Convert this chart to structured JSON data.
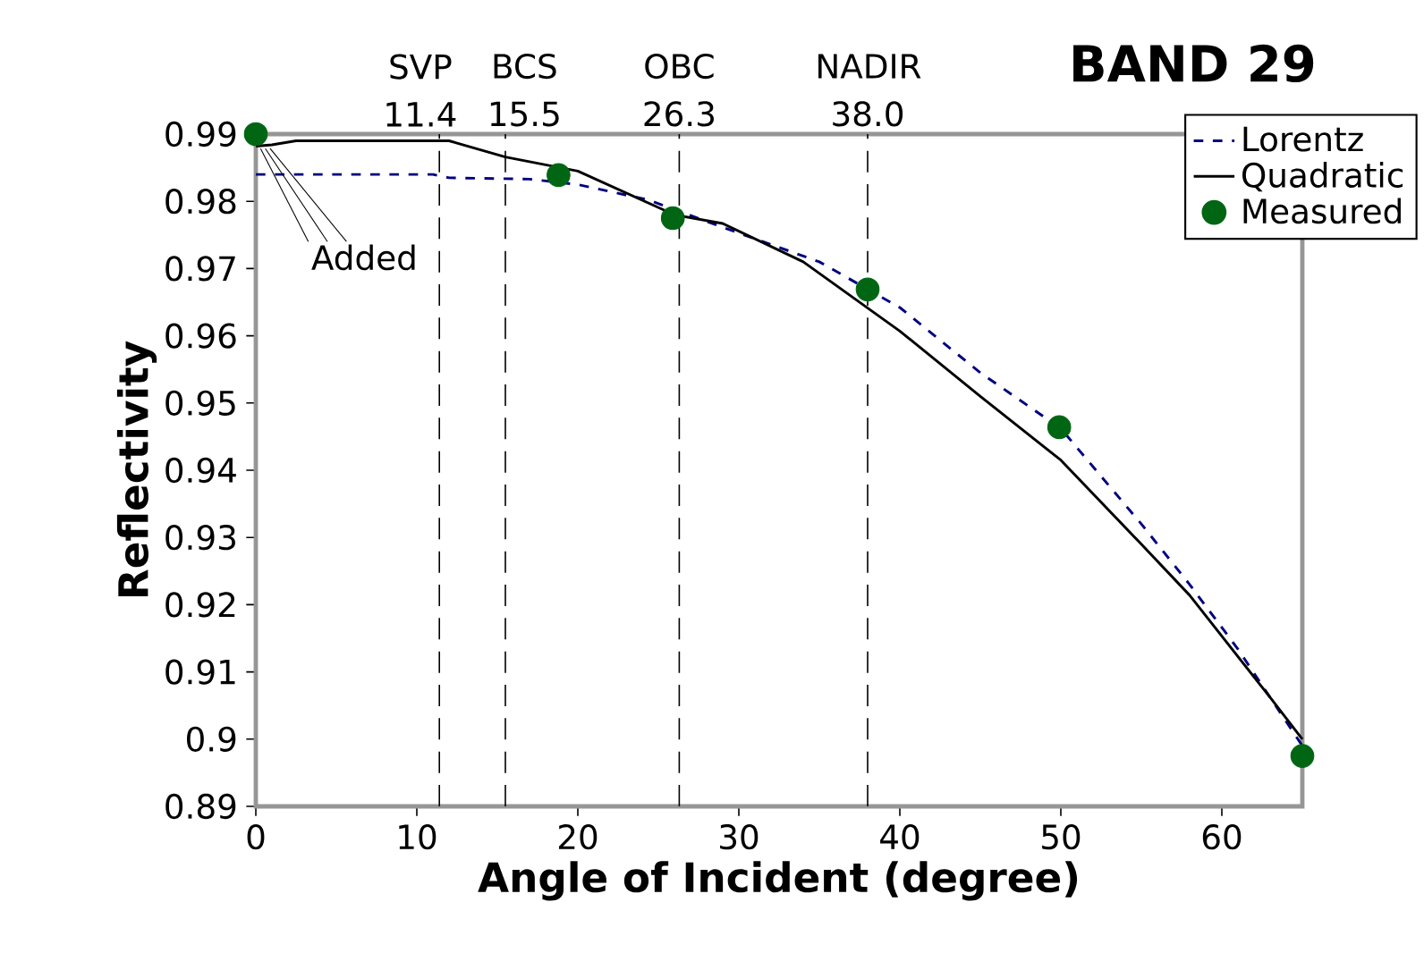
{
  "chart_data": {
    "type": "line",
    "title": "BAND 29",
    "xlabel": "Angle of Incident (degree)",
    "ylabel": "Reflectivity",
    "xlim": [
      0,
      65
    ],
    "xticks": [
      0,
      10,
      20,
      30,
      40,
      50,
      60
    ],
    "ylim": [
      0.89,
      0.99
    ],
    "yticks": [
      0.89,
      0.9,
      0.91,
      0.92,
      0.93,
      0.94,
      0.95,
      0.96,
      0.97,
      0.98,
      0.99
    ],
    "legend": "top right",
    "grid": false,
    "series": [
      {
        "name": "Lorentz",
        "color": "#000080",
        "line_style": "dashed",
        "x": [
          0,
          11,
          12,
          17,
          20,
          24.4,
          28,
          35,
          40,
          45,
          50,
          55,
          58,
          61,
          65
        ],
        "values": [
          0.984,
          0.984,
          0.9835,
          0.9833,
          0.9825,
          0.9802,
          0.977,
          0.971,
          0.9642,
          0.9545,
          0.9462,
          0.932,
          0.923,
          0.9134,
          0.899
        ]
      },
      {
        "name": "Quadratic",
        "color": "#000000",
        "line_style": "solid",
        "x": [
          0,
          1,
          2.5,
          12,
          15.5,
          20,
          26,
          29,
          34,
          40,
          45,
          50,
          55,
          58,
          63,
          65
        ],
        "values": [
          0.9882,
          0.9884,
          0.989,
          0.989,
          0.9866,
          0.9845,
          0.978,
          0.9767,
          0.971,
          0.9607,
          0.951,
          0.9415,
          0.929,
          0.9214,
          0.9062,
          0.9
        ]
      },
      {
        "name": "Measured",
        "type": "scatter",
        "color": "#006614",
        "marker": "circle",
        "x": [
          0,
          18.8,
          25.9,
          38,
          49.9,
          65
        ],
        "values": [
          0.99,
          0.9839,
          0.9775,
          0.9669,
          0.9464,
          0.8975
        ]
      }
    ],
    "ref_lines": [
      {
        "axis": "x",
        "value": 11.4,
        "label": "SVP 11.4",
        "color": "#000000",
        "line_style": "dashed"
      },
      {
        "axis": "x",
        "value": 15.5,
        "label": "BCS 15.5",
        "color": "#000000",
        "line_style": "dashed"
      },
      {
        "axis": "x",
        "value": 26.3,
        "label": "OBC 26.3",
        "color": "#000000",
        "line_style": "dashed"
      },
      {
        "axis": "x",
        "value": 38.0,
        "label": "NADIR 38.0",
        "color": "#000000",
        "line_style": "dashed"
      }
    ],
    "annotations": [
      {
        "text": "Added",
        "x": 0,
        "y": 0.9882
      }
    ]
  }
}
